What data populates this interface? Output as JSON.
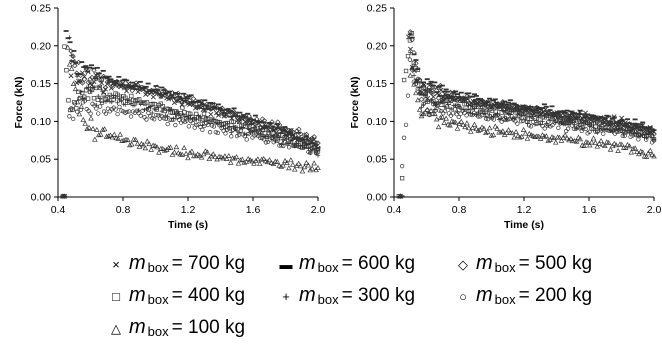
{
  "chart_data": [
    {
      "type": "scatter",
      "title": "",
      "xlabel": "Time (s)",
      "ylabel": "Force (kN)",
      "xlim": [
        0.4,
        2.0
      ],
      "ylim": [
        0,
        0.25
      ],
      "xticks": [
        "0.4",
        "0.8",
        "1.2",
        "1.6",
        "2.0"
      ],
      "yticks": [
        "0.00",
        "0.05",
        "0.10",
        "0.15",
        "0.20",
        "0.25"
      ],
      "grid": false,
      "marker_color": "#333333",
      "series": [
        {
          "name": "700 kg",
          "marker": "x",
          "points": [
            [
              0.44,
              0.001
            ],
            [
              0.48,
              0.17
            ],
            [
              0.55,
              0.16
            ],
            [
              0.7,
              0.15
            ],
            [
              0.9,
              0.142
            ],
            [
              1.2,
              0.125
            ],
            [
              1.5,
              0.105
            ],
            [
              1.8,
              0.085
            ],
            [
              2.0,
              0.07
            ]
          ]
        },
        {
          "name": "600 kg",
          "marker": "dash",
          "points": [
            [
              0.43,
              0.001
            ],
            [
              0.45,
              0.21
            ],
            [
              0.52,
              0.17
            ],
            [
              0.7,
              0.158
            ],
            [
              0.9,
              0.148
            ],
            [
              1.2,
              0.13
            ],
            [
              1.5,
              0.11
            ],
            [
              1.8,
              0.088
            ],
            [
              2.0,
              0.066
            ]
          ]
        },
        {
          "name": "500 kg",
          "marker": "diamond",
          "points": [
            [
              0.44,
              0.001
            ],
            [
              0.48,
              0.19
            ],
            [
              0.55,
              0.165
            ],
            [
              0.7,
              0.152
            ],
            [
              0.9,
              0.145
            ],
            [
              1.2,
              0.128
            ],
            [
              1.5,
              0.108
            ],
            [
              1.8,
              0.09
            ],
            [
              2.0,
              0.075
            ]
          ]
        },
        {
          "name": "400 kg",
          "marker": "square",
          "points": [
            [
              0.43,
              0.001
            ],
            [
              0.44,
              0.21
            ],
            [
              0.46,
              0.125
            ],
            [
              0.5,
              0.12
            ],
            [
              0.55,
              0.14
            ],
            [
              0.7,
              0.135
            ],
            [
              0.9,
              0.125
            ],
            [
              1.2,
              0.11
            ],
            [
              1.5,
              0.095
            ],
            [
              1.8,
              0.078
            ],
            [
              2.0,
              0.062
            ]
          ]
        },
        {
          "name": "300 kg",
          "marker": "plus",
          "points": [
            [
              0.44,
              0.001
            ],
            [
              0.47,
              0.2
            ],
            [
              0.55,
              0.14
            ],
            [
              0.7,
              0.13
            ],
            [
              0.9,
              0.12
            ],
            [
              1.2,
              0.105
            ],
            [
              1.5,
              0.09
            ],
            [
              1.8,
              0.075
            ],
            [
              2.0,
              0.06
            ]
          ]
        },
        {
          "name": "200 kg",
          "marker": "circle",
          "points": [
            [
              0.44,
              0.001
            ],
            [
              0.47,
              0.11
            ],
            [
              0.55,
              0.125
            ],
            [
              0.7,
              0.118
            ],
            [
              0.9,
              0.11
            ],
            [
              1.2,
              0.098
            ],
            [
              1.5,
              0.085
            ],
            [
              1.8,
              0.07
            ],
            [
              2.0,
              0.06
            ]
          ]
        },
        {
          "name": "100 kg",
          "marker": "triangle",
          "points": [
            [
              0.43,
              0.001
            ],
            [
              0.46,
              0.2
            ],
            [
              0.52,
              0.12
            ],
            [
              0.6,
              0.09
            ],
            [
              0.7,
              0.082
            ],
            [
              0.9,
              0.07
            ],
            [
              1.2,
              0.058
            ],
            [
              1.5,
              0.05
            ],
            [
              1.8,
              0.044
            ],
            [
              2.0,
              0.038
            ]
          ]
        }
      ]
    },
    {
      "type": "scatter",
      "title": "",
      "xlabel": "Time (s)",
      "ylabel": "Force (kN)",
      "xlim": [
        0.4,
        2.0
      ],
      "ylim": [
        0,
        0.25
      ],
      "xticks": [
        "0.4",
        "0.8",
        "1.2",
        "1.6",
        "2.0"
      ],
      "yticks": [
        "0.00",
        "0.05",
        "0.10",
        "0.15",
        "0.20",
        "0.25"
      ],
      "grid": false,
      "marker_color": "#333333",
      "series": [
        {
          "name": "700 kg",
          "marker": "x",
          "points": [
            [
              0.44,
              0.001
            ],
            [
              0.49,
              0.2
            ],
            [
              0.55,
              0.145
            ],
            [
              0.7,
              0.135
            ],
            [
              0.9,
              0.125
            ],
            [
              1.2,
              0.116
            ],
            [
              1.5,
              0.108
            ],
            [
              1.8,
              0.098
            ],
            [
              2.0,
              0.088
            ]
          ]
        },
        {
          "name": "600 kg",
          "marker": "dash",
          "points": [
            [
              0.45,
              0.001
            ],
            [
              0.5,
              0.21
            ],
            [
              0.56,
              0.145
            ],
            [
              0.7,
              0.14
            ],
            [
              0.9,
              0.13
            ],
            [
              1.2,
              0.12
            ],
            [
              1.5,
              0.11
            ],
            [
              1.8,
              0.1
            ],
            [
              2.0,
              0.09
            ]
          ]
        },
        {
          "name": "500 kg",
          "marker": "diamond",
          "points": [
            [
              0.44,
              0.001
            ],
            [
              0.5,
              0.21
            ],
            [
              0.56,
              0.142
            ],
            [
              0.7,
              0.135
            ],
            [
              0.9,
              0.125
            ],
            [
              1.2,
              0.115
            ],
            [
              1.5,
              0.105
            ],
            [
              1.8,
              0.095
            ],
            [
              2.0,
              0.085
            ]
          ]
        },
        {
          "name": "400 kg",
          "marker": "square",
          "points": [
            [
              0.43,
              0.001
            ],
            [
              0.45,
              0.035
            ],
            [
              0.46,
              0.145
            ],
            [
              0.5,
              0.215
            ],
            [
              0.56,
              0.14
            ],
            [
              0.7,
              0.13
            ],
            [
              0.9,
              0.12
            ],
            [
              1.2,
              0.112
            ],
            [
              1.5,
              0.102
            ],
            [
              1.8,
              0.092
            ],
            [
              2.0,
              0.082
            ]
          ]
        },
        {
          "name": "300 kg",
          "marker": "plus",
          "points": [
            [
              0.44,
              0.001
            ],
            [
              0.5,
              0.19
            ],
            [
              0.56,
              0.13
            ],
            [
              0.7,
              0.12
            ],
            [
              0.9,
              0.112
            ],
            [
              1.2,
              0.104
            ],
            [
              1.5,
              0.096
            ],
            [
              1.8,
              0.088
            ],
            [
              2.0,
              0.08
            ]
          ]
        },
        {
          "name": "200 kg",
          "marker": "circle",
          "points": [
            [
              0.44,
              0.001
            ],
            [
              0.45,
              0.03
            ],
            [
              0.5,
              0.18
            ],
            [
              0.56,
              0.125
            ],
            [
              0.7,
              0.115
            ],
            [
              0.9,
              0.108
            ],
            [
              1.2,
              0.1
            ],
            [
              1.5,
              0.093
            ],
            [
              1.8,
              0.085
            ],
            [
              2.0,
              0.078
            ]
          ]
        },
        {
          "name": "100 kg",
          "marker": "triangle",
          "points": [
            [
              0.44,
              0.001
            ],
            [
              0.5,
              0.17
            ],
            [
              0.56,
              0.115
            ],
            [
              0.7,
              0.1
            ],
            [
              0.9,
              0.09
            ],
            [
              1.2,
              0.082
            ],
            [
              1.5,
              0.075
            ],
            [
              1.8,
              0.065
            ],
            [
              2.0,
              0.055
            ]
          ]
        }
      ]
    }
  ],
  "legend": {
    "variable": "m",
    "subscript": "box",
    "entries": [
      {
        "marker": "×",
        "text": "= 700 kg"
      },
      {
        "marker": "▬",
        "text": "= 600 kg"
      },
      {
        "marker": "◇",
        "text": "= 500 kg"
      },
      {
        "marker": "□",
        "text": "= 400 kg"
      },
      {
        "marker": "+",
        "text": "= 300 kg"
      },
      {
        "marker": "○",
        "text": "= 200 kg"
      },
      {
        "marker": "△",
        "text": "= 100 kg"
      }
    ]
  }
}
